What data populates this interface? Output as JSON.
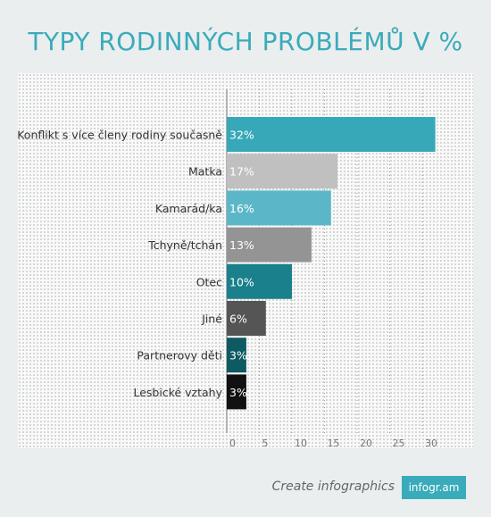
{
  "chart_data": {
    "type": "bar",
    "orientation": "horizontal",
    "title": "TYPY RODINNÝCH PROBLÉMŮ V %",
    "categories": [
      "Konflikt s více členy rodiny současně",
      "Matka",
      "Kamarád/ka",
      "Tchyně/tchán",
      "Otec",
      "Jiné",
      "Partnerovy děti",
      "Lesbické vztahy"
    ],
    "values": [
      32,
      17,
      16,
      13,
      10,
      6,
      3,
      3
    ],
    "value_labels": [
      "32%",
      "17%",
      "16%",
      "13%",
      "10%",
      "6%",
      "3%",
      "3%"
    ],
    "colors": [
      "#37a8b8",
      "#c0c0c0",
      "#5bb7c7",
      "#949494",
      "#1a808c",
      "#555555",
      "#0e5a63",
      "#111111"
    ],
    "xlim": [
      0,
      33
    ],
    "xticks": [
      0,
      5,
      10,
      15,
      20,
      25,
      30
    ],
    "grid": true
  },
  "footer": {
    "create_text": "Create infographics",
    "logo_text": "infogr.am"
  }
}
